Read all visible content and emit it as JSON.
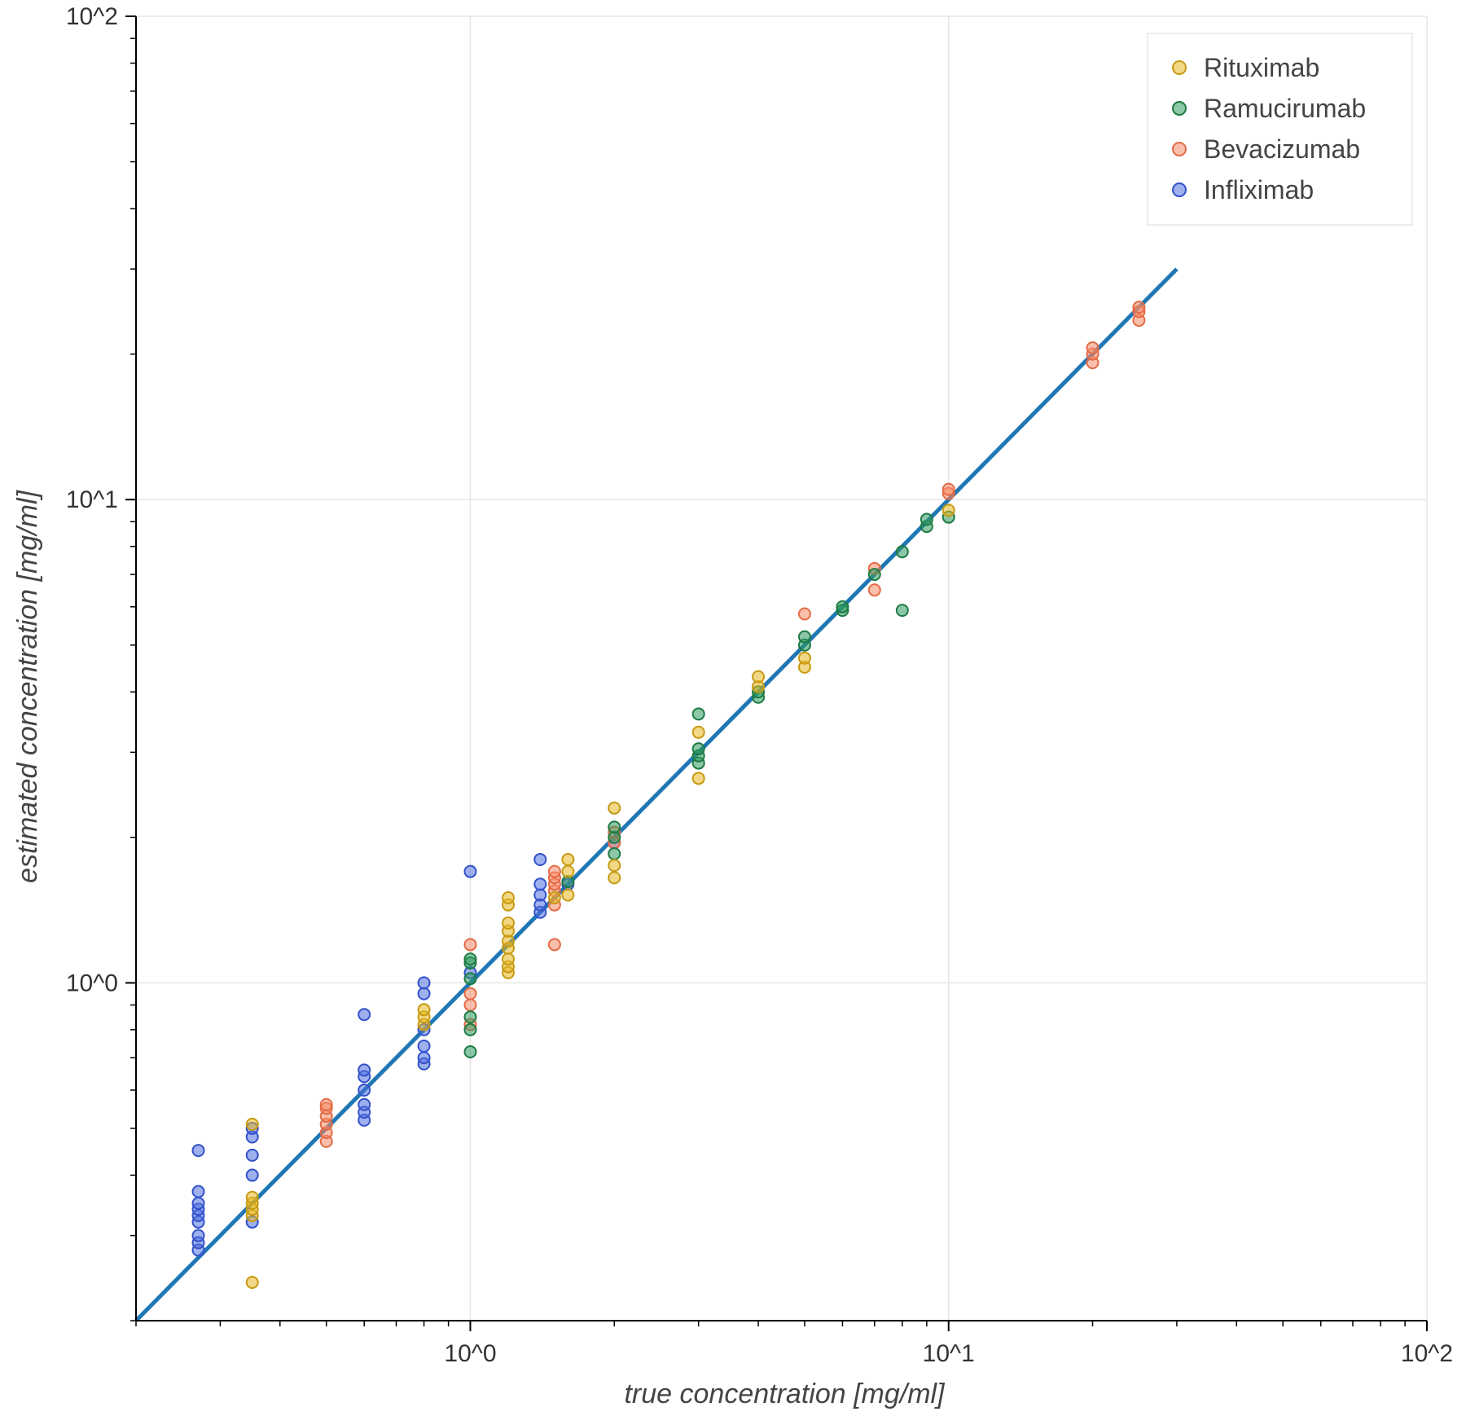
{
  "chart_data": {
    "type": "scatter",
    "xscale": "log",
    "yscale": "log",
    "xlim": [
      0.2,
      100
    ],
    "ylim": [
      0.2,
      100
    ],
    "xlabel": "true concentration [mg/ml]",
    "ylabel": "estimated concentration [mg/ml]",
    "x_tick_labels": [
      "10^0",
      "10^1",
      "10^2"
    ],
    "y_tick_labels": [
      "10^0",
      "10^1",
      "10^2"
    ],
    "grid": true,
    "legend_position": "top-right",
    "reference_line": {
      "x": [
        0.2,
        30
      ],
      "y": [
        0.2,
        30
      ],
      "color": "#1f77b4"
    },
    "series": [
      {
        "name": "Rituximab",
        "color": "#e8b823",
        "stroke": "#c79a12",
        "points": [
          [
            0.35,
            0.24
          ],
          [
            0.35,
            0.33
          ],
          [
            0.35,
            0.34
          ],
          [
            0.35,
            0.35
          ],
          [
            0.35,
            0.36
          ],
          [
            0.35,
            0.51
          ],
          [
            0.8,
            0.82
          ],
          [
            0.8,
            0.85
          ],
          [
            0.8,
            0.88
          ],
          [
            1.2,
            1.05
          ],
          [
            1.2,
            1.08
          ],
          [
            1.2,
            1.12
          ],
          [
            1.2,
            1.18
          ],
          [
            1.2,
            1.22
          ],
          [
            1.2,
            1.28
          ],
          [
            1.2,
            1.33
          ],
          [
            1.2,
            1.45
          ],
          [
            1.2,
            1.5
          ],
          [
            1.5,
            1.5
          ],
          [
            1.6,
            1.52
          ],
          [
            1.6,
            1.7
          ],
          [
            1.6,
            1.8
          ],
          [
            2,
            1.65
          ],
          [
            2,
            1.75
          ],
          [
            2,
            2.3
          ],
          [
            3,
            2.65
          ],
          [
            3,
            3.3
          ],
          [
            4,
            4.1
          ],
          [
            4,
            4.3
          ],
          [
            5,
            4.5
          ],
          [
            5,
            4.7
          ],
          [
            10,
            9.5
          ]
        ]
      },
      {
        "name": "Ramucirumab",
        "color": "#2e9b5e",
        "stroke": "#1e7a43",
        "points": [
          [
            1,
            0.8
          ],
          [
            1,
            0.72
          ],
          [
            1,
            0.85
          ],
          [
            1,
            1.02
          ],
          [
            1,
            1.1
          ],
          [
            1,
            1.12
          ],
          [
            1.6,
            1.62
          ],
          [
            2,
            1.85
          ],
          [
            2,
            2.0
          ],
          [
            2,
            2.1
          ],
          [
            3,
            2.85
          ],
          [
            3,
            2.95
          ],
          [
            3,
            3.05
          ],
          [
            3,
            3.6
          ],
          [
            4,
            3.9
          ],
          [
            4,
            4.0
          ],
          [
            5,
            5.0
          ],
          [
            5,
            5.2
          ],
          [
            6,
            5.9
          ],
          [
            6,
            6.0
          ],
          [
            7,
            7.0
          ],
          [
            8,
            7.8
          ],
          [
            8,
            5.9
          ],
          [
            9,
            8.8
          ],
          [
            9,
            9.1
          ],
          [
            10,
            9.2
          ]
        ]
      },
      {
        "name": "Bevacizumab",
        "color": "#f58b68",
        "stroke": "#e46a45",
        "points": [
          [
            0.5,
            0.47
          ],
          [
            0.5,
            0.49
          ],
          [
            0.5,
            0.51
          ],
          [
            0.5,
            0.53
          ],
          [
            0.5,
            0.55
          ],
          [
            0.5,
            0.56
          ],
          [
            1,
            0.82
          ],
          [
            1,
            0.9
          ],
          [
            1,
            0.95
          ],
          [
            1,
            1.2
          ],
          [
            1.5,
            1.2
          ],
          [
            1.5,
            1.45
          ],
          [
            1.5,
            1.55
          ],
          [
            1.5,
            1.6
          ],
          [
            1.5,
            1.65
          ],
          [
            1.5,
            1.7
          ],
          [
            2,
            1.95
          ],
          [
            2,
            2.05
          ],
          [
            5,
            5.8
          ],
          [
            7,
            6.5
          ],
          [
            7,
            7.2
          ],
          [
            10,
            10.3
          ],
          [
            10,
            10.5
          ],
          [
            20,
            19.2
          ],
          [
            20,
            20.0
          ],
          [
            20,
            20.6
          ],
          [
            25,
            23.5
          ],
          [
            25,
            24.5
          ],
          [
            25,
            25.0
          ]
        ]
      },
      {
        "name": "Infliximab",
        "color": "#4f6fe0",
        "stroke": "#3352c9",
        "points": [
          [
            0.27,
            0.28
          ],
          [
            0.27,
            0.29
          ],
          [
            0.27,
            0.3
          ],
          [
            0.27,
            0.32
          ],
          [
            0.27,
            0.33
          ],
          [
            0.27,
            0.34
          ],
          [
            0.27,
            0.35
          ],
          [
            0.27,
            0.37
          ],
          [
            0.27,
            0.45
          ],
          [
            0.35,
            0.32
          ],
          [
            0.35,
            0.4
          ],
          [
            0.35,
            0.44
          ],
          [
            0.35,
            0.48
          ],
          [
            0.35,
            0.5
          ],
          [
            0.6,
            0.52
          ],
          [
            0.6,
            0.54
          ],
          [
            0.6,
            0.56
          ],
          [
            0.6,
            0.6
          ],
          [
            0.6,
            0.64
          ],
          [
            0.6,
            0.66
          ],
          [
            0.6,
            0.86
          ],
          [
            0.8,
            0.68
          ],
          [
            0.8,
            0.7
          ],
          [
            0.8,
            0.74
          ],
          [
            0.8,
            0.8
          ],
          [
            0.8,
            0.95
          ],
          [
            0.8,
            1.0
          ],
          [
            1,
            1.7
          ],
          [
            1,
            1.05
          ],
          [
            1.4,
            1.4
          ],
          [
            1.4,
            1.45
          ],
          [
            1.4,
            1.52
          ],
          [
            1.4,
            1.6
          ],
          [
            1.4,
            1.8
          ],
          [
            1.6,
            1.6
          ],
          [
            2,
            1.95
          ]
        ]
      }
    ]
  }
}
